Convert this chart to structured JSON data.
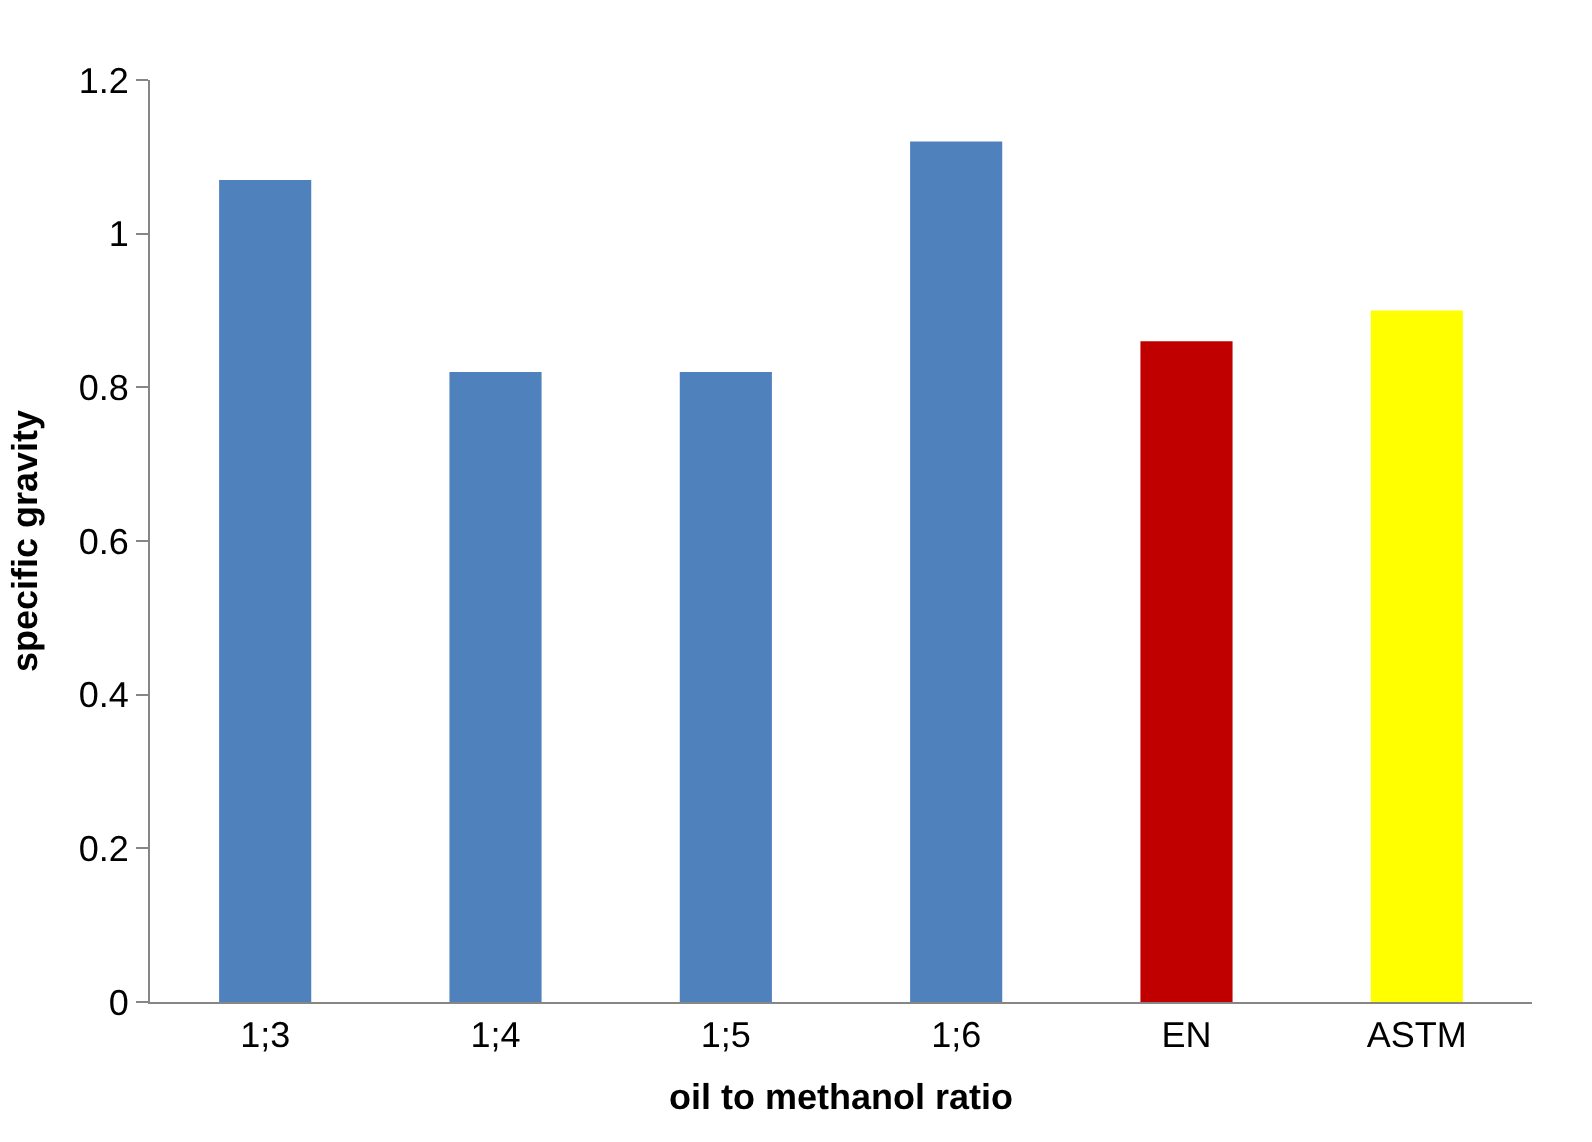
{
  "chart_data": {
    "type": "bar",
    "xlabel": "oil to methanol ratio",
    "ylabel": "specific gravity",
    "categories": [
      "1;3",
      "1;4",
      "1;5",
      "1;6",
      "EN",
      "ASTM"
    ],
    "values": [
      1.07,
      0.82,
      0.82,
      1.12,
      0.86,
      0.9
    ],
    "colors": [
      "#4f81bd",
      "#4f81bd",
      "#4f81bd",
      "#4f81bd",
      "#c00000",
      "#ffff00"
    ],
    "ylim": [
      0,
      1.2
    ],
    "yticks": [
      0,
      0.2,
      0.4,
      0.6,
      0.8,
      1,
      1.2
    ]
  }
}
